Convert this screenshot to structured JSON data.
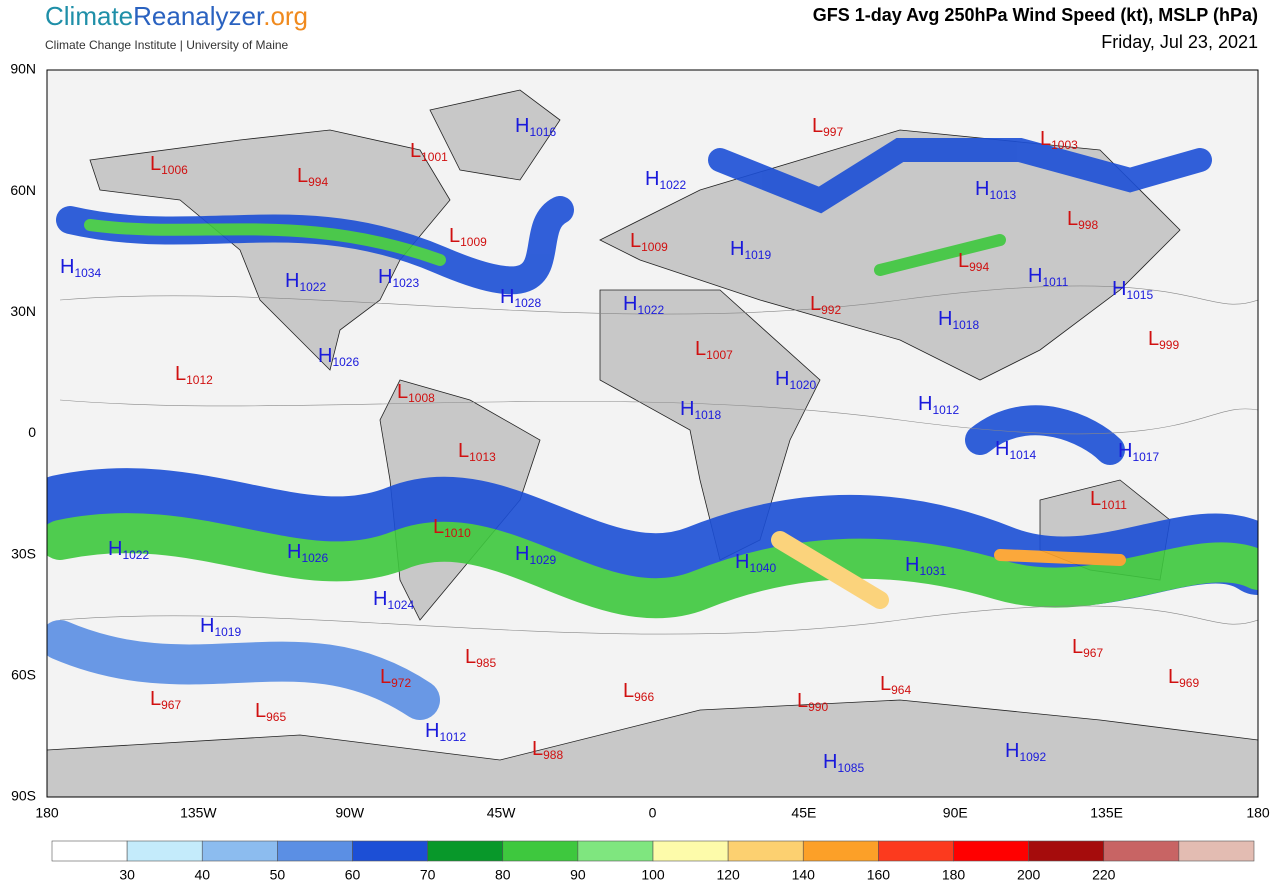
{
  "header": {
    "logo": [
      "Climate",
      "Reanalyzer",
      ".org"
    ],
    "subtitle": "Climate Change Institute | University of Maine",
    "title": "GFS 1-day Avg 250hPa Wind Speed (kt), MSLP (hPa)",
    "date": "Friday, Jul 23, 2021"
  },
  "lat_labels": [
    "90N",
    "60N",
    "30N",
    "0",
    "30S",
    "60S",
    "90S"
  ],
  "lon_labels": [
    "180",
    "135W",
    "90W",
    "45W",
    "0",
    "45E",
    "90E",
    "135E",
    "180"
  ],
  "pressure_centers": [
    {
      "kind": "H",
      "value": 1016
    },
    {
      "kind": "L",
      "value": 997
    },
    {
      "kind": "L",
      "value": 1003
    },
    {
      "kind": "L",
      "value": 1006
    },
    {
      "kind": "L",
      "value": 1001
    },
    {
      "kind": "L",
      "value": 994
    },
    {
      "kind": "H",
      "value": 1022
    },
    {
      "kind": "H",
      "value": 1013
    },
    {
      "kind": "L",
      "value": 998
    },
    {
      "kind": "L",
      "value": 1009
    },
    {
      "kind": "L",
      "value": 1009
    },
    {
      "kind": "H",
      "value": 1019
    },
    {
      "kind": "L",
      "value": 994
    },
    {
      "kind": "H",
      "value": 1034
    },
    {
      "kind": "H",
      "value": 1022
    },
    {
      "kind": "H",
      "value": 1023
    },
    {
      "kind": "H",
      "value": 1011
    },
    {
      "kind": "H",
      "value": 1015
    },
    {
      "kind": "H",
      "value": 1028
    },
    {
      "kind": "H",
      "value": 1022
    },
    {
      "kind": "L",
      "value": 992
    },
    {
      "kind": "H",
      "value": 1018
    },
    {
      "kind": "L",
      "value": 999
    },
    {
      "kind": "H",
      "value": 1026
    },
    {
      "kind": "L",
      "value": 1007
    },
    {
      "kind": "L",
      "value": 1012
    },
    {
      "kind": "L",
      "value": 1008
    },
    {
      "kind": "H",
      "value": 1020
    },
    {
      "kind": "H",
      "value": 1018
    },
    {
      "kind": "H",
      "value": 1012
    },
    {
      "kind": "L",
      "value": 1013
    },
    {
      "kind": "H",
      "value": 1014
    },
    {
      "kind": "H",
      "value": 1017
    },
    {
      "kind": "L",
      "value": 1011
    },
    {
      "kind": "L",
      "value": 1010
    },
    {
      "kind": "H",
      "value": 1022
    },
    {
      "kind": "H",
      "value": 1026
    },
    {
      "kind": "H",
      "value": 1029
    },
    {
      "kind": "H",
      "value": 1040
    },
    {
      "kind": "H",
      "value": 1031
    },
    {
      "kind": "H",
      "value": 1024
    },
    {
      "kind": "H",
      "value": 1019
    },
    {
      "kind": "L",
      "value": 985
    },
    {
      "kind": "L",
      "value": 967
    },
    {
      "kind": "L",
      "value": 972
    },
    {
      "kind": "L",
      "value": 969
    },
    {
      "kind": "L",
      "value": 967
    },
    {
      "kind": "L",
      "value": 966
    },
    {
      "kind": "L",
      "value": 964
    },
    {
      "kind": "L",
      "value": 990
    },
    {
      "kind": "L",
      "value": 965
    },
    {
      "kind": "H",
      "value": 1012
    },
    {
      "kind": "L",
      "value": 988
    },
    {
      "kind": "H",
      "value": 1092
    },
    {
      "kind": "H",
      "value": 1085
    }
  ],
  "colorbar": {
    "colors": [
      "#ffffff",
      "#c4ebfb",
      "#8cbcef",
      "#5b8fe4",
      "#1c4fd6",
      "#08982a",
      "#3ec83e",
      "#7fe67f",
      "#fdfbaa",
      "#fcd070",
      "#fca028",
      "#fc3a1e",
      "#ff0000",
      "#a50c0c",
      "#c86464",
      "#e3bcb2"
    ],
    "labels": [
      30,
      40,
      50,
      60,
      70,
      80,
      90,
      100,
      120,
      140,
      160,
      180,
      200,
      220
    ]
  }
}
